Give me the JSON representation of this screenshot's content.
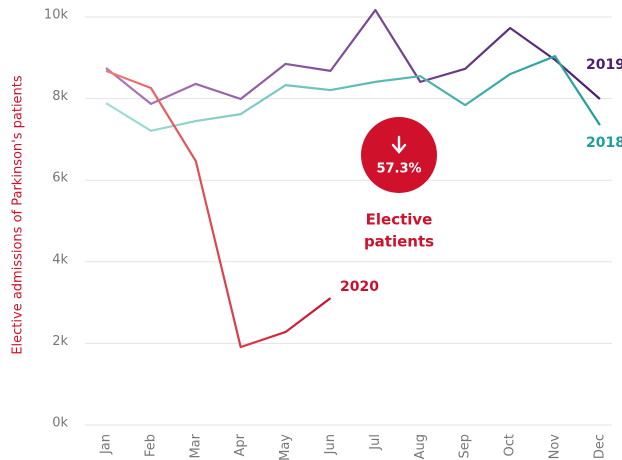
{
  "chart_data": {
    "type": "line",
    "y_label": "Elective admissions of Parkinson's patients",
    "categories": [
      "Jan",
      "Feb",
      "Mar",
      "Apr",
      "May",
      "Jun",
      "Jul",
      "Aug",
      "Sep",
      "Oct",
      "Nov",
      "Dec"
    ],
    "series": [
      {
        "name": "2019",
        "color": "#4a1f6e",
        "color_start": "#b07ab8",
        "values": [
          8750,
          7870,
          8360,
          7990,
          8850,
          8680,
          10170,
          8410,
          8730,
          9730,
          8950,
          7990
        ]
      },
      {
        "name": "2018",
        "color": "#1f9e9a",
        "color_start": "#a7dcd6",
        "values": [
          7890,
          7210,
          7450,
          7620,
          8330,
          8210,
          8410,
          8550,
          7840,
          8600,
          9040,
          7350
        ]
      },
      {
        "name": "2020",
        "color": "#c8102e",
        "color_start": "#f07b73",
        "values": [
          8680,
          8260,
          6470,
          1910,
          2280,
          3110,
          null,
          null,
          null,
          null,
          null,
          null
        ]
      }
    ],
    "ylim": [
      0,
      10000
    ],
    "yticks": [
      {
        "value": 0,
        "label": "0k"
      },
      {
        "value": 2000,
        "label": "2k"
      },
      {
        "value": 4000,
        "label": "4k"
      },
      {
        "value": 6000,
        "label": "6k"
      },
      {
        "value": 8000,
        "label": "8k"
      },
      {
        "value": 10000,
        "label": "10k"
      }
    ],
    "grid": true,
    "annotation": {
      "value": "57.3%",
      "lines": [
        "Elective",
        "patients"
      ],
      "color": "#d0112b"
    }
  }
}
